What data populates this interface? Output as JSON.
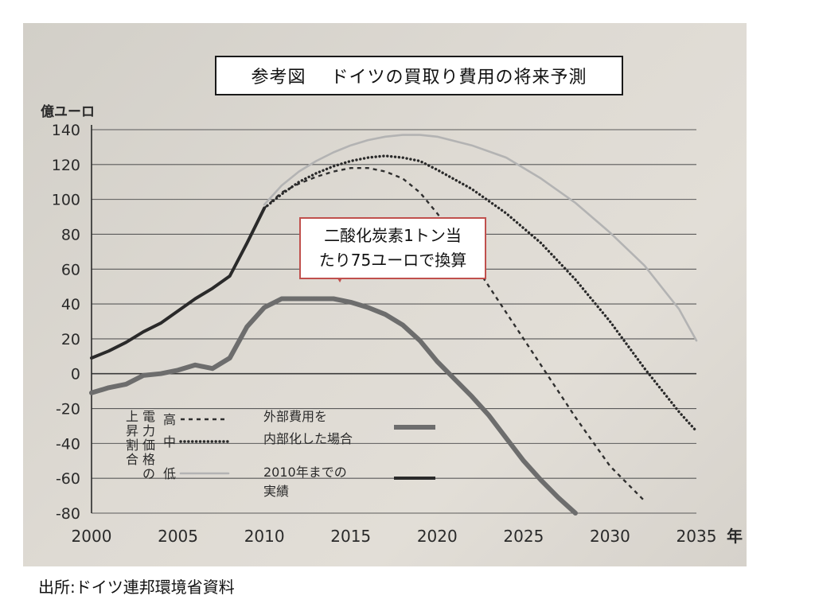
{
  "title": "参考図　 ドイツの買取り費用の将来予測",
  "unit_label": "億ユーロ",
  "callout": {
    "line1": "二酸化炭素1トン当",
    "line2": "たり75ユーロで換算"
  },
  "source": "出所:ドイツ連邦環境省資料",
  "legend": {
    "vertical_label": [
      "電力価格の",
      "上昇割合"
    ],
    "high": "高",
    "mid": "中",
    "low": "低",
    "external_line1": "外部費用を",
    "external_line2": "内部化した場合",
    "actual_line1": "2010年までの",
    "actual_line2": "実績"
  },
  "colors": {
    "high": "#2f2f2f",
    "mid": "#2a2a2a",
    "low": "#b3b3b3",
    "external": "#6d6d6d",
    "actual": "#2a2a2a",
    "callout_border": "#c0504d"
  },
  "chart_data": {
    "type": "line",
    "title": "参考図　 ドイツの買取り費用の将来予測",
    "ylabel": "億ユーロ",
    "xlabel": "年",
    "xlim": [
      2000,
      2035
    ],
    "ylim": [
      -80,
      140
    ],
    "x_ticks": [
      2000,
      2005,
      2010,
      2015,
      2020,
      2025,
      2030,
      2035
    ],
    "y_ticks": [
      140,
      120,
      100,
      80,
      60,
      40,
      20,
      0,
      -20,
      -40,
      -60,
      -80
    ],
    "grid": "horizontal",
    "series": [
      {
        "name": "実績",
        "style": "solid",
        "x": [
          2000,
          2001,
          2002,
          2003,
          2004,
          2005,
          2006,
          2007,
          2008,
          2009,
          2010
        ],
        "y": [
          9,
          13,
          18,
          24,
          29,
          36,
          43,
          49,
          56,
          75,
          95
        ]
      },
      {
        "name": "高",
        "style": "dashed",
        "x": [
          2010,
          2011,
          2012,
          2013,
          2014,
          2015,
          2016,
          2017,
          2018,
          2019,
          2020,
          2022,
          2024,
          2026,
          2028,
          2030,
          2032
        ],
        "y": [
          95,
          104,
          109,
          113,
          116,
          118,
          118,
          116,
          112,
          104,
          92,
          65,
          35,
          5,
          -25,
          -53,
          -73
        ]
      },
      {
        "name": "中",
        "style": "dotted",
        "x": [
          2010,
          2011,
          2012,
          2013,
          2014,
          2015,
          2016,
          2017,
          2018,
          2019,
          2020,
          2022,
          2024,
          2026,
          2028,
          2030,
          2032,
          2034,
          2035
        ],
        "y": [
          95,
          103,
          110,
          115,
          119,
          122,
          124,
          125,
          124,
          122,
          117,
          106,
          92,
          75,
          54,
          30,
          3,
          -22,
          -33
        ]
      },
      {
        "name": "低",
        "style": "solid-light",
        "x": [
          2010,
          2011,
          2012,
          2013,
          2014,
          2015,
          2016,
          2017,
          2018,
          2019,
          2020,
          2022,
          2024,
          2026,
          2028,
          2030,
          2032,
          2034,
          2035
        ],
        "y": [
          97,
          108,
          116,
          122,
          127,
          131,
          134,
          136,
          137,
          137,
          136,
          131,
          124,
          112,
          98,
          81,
          62,
          37,
          19
        ]
      },
      {
        "name": "外部費用を内部化した場合",
        "style": "thick-gray",
        "x": [
          2000,
          2001,
          2002,
          2003,
          2004,
          2005,
          2006,
          2007,
          2008,
          2009,
          2010,
          2011,
          2012,
          2013,
          2014,
          2015,
          2016,
          2017,
          2018,
          2019,
          2020,
          2021,
          2022,
          2023,
          2024,
          2025,
          2026,
          2027,
          2028
        ],
        "y": [
          -11,
          -8,
          -6,
          -1,
          0,
          2,
          5,
          3,
          9,
          27,
          38,
          43,
          43,
          43,
          43,
          41,
          38,
          34,
          28,
          19,
          7,
          -3,
          -13,
          -24,
          -37,
          -50,
          -61,
          -71,
          -80
        ]
      }
    ]
  }
}
